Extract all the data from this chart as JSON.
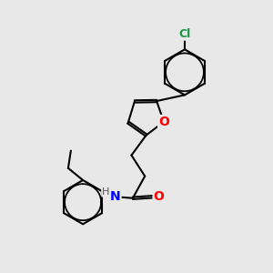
{
  "bg_color": "#e8e8e8",
  "bond_color": "#000000",
  "bond_width": 1.5,
  "dbo": 0.08,
  "atom_colors": {
    "O": "#ff0000",
    "N": "#0000ff",
    "Cl": "#1a9641",
    "H": "#404040",
    "C": "#000000"
  },
  "font_size": 9,
  "fig_size": [
    3.0,
    3.0
  ],
  "dpi": 100
}
